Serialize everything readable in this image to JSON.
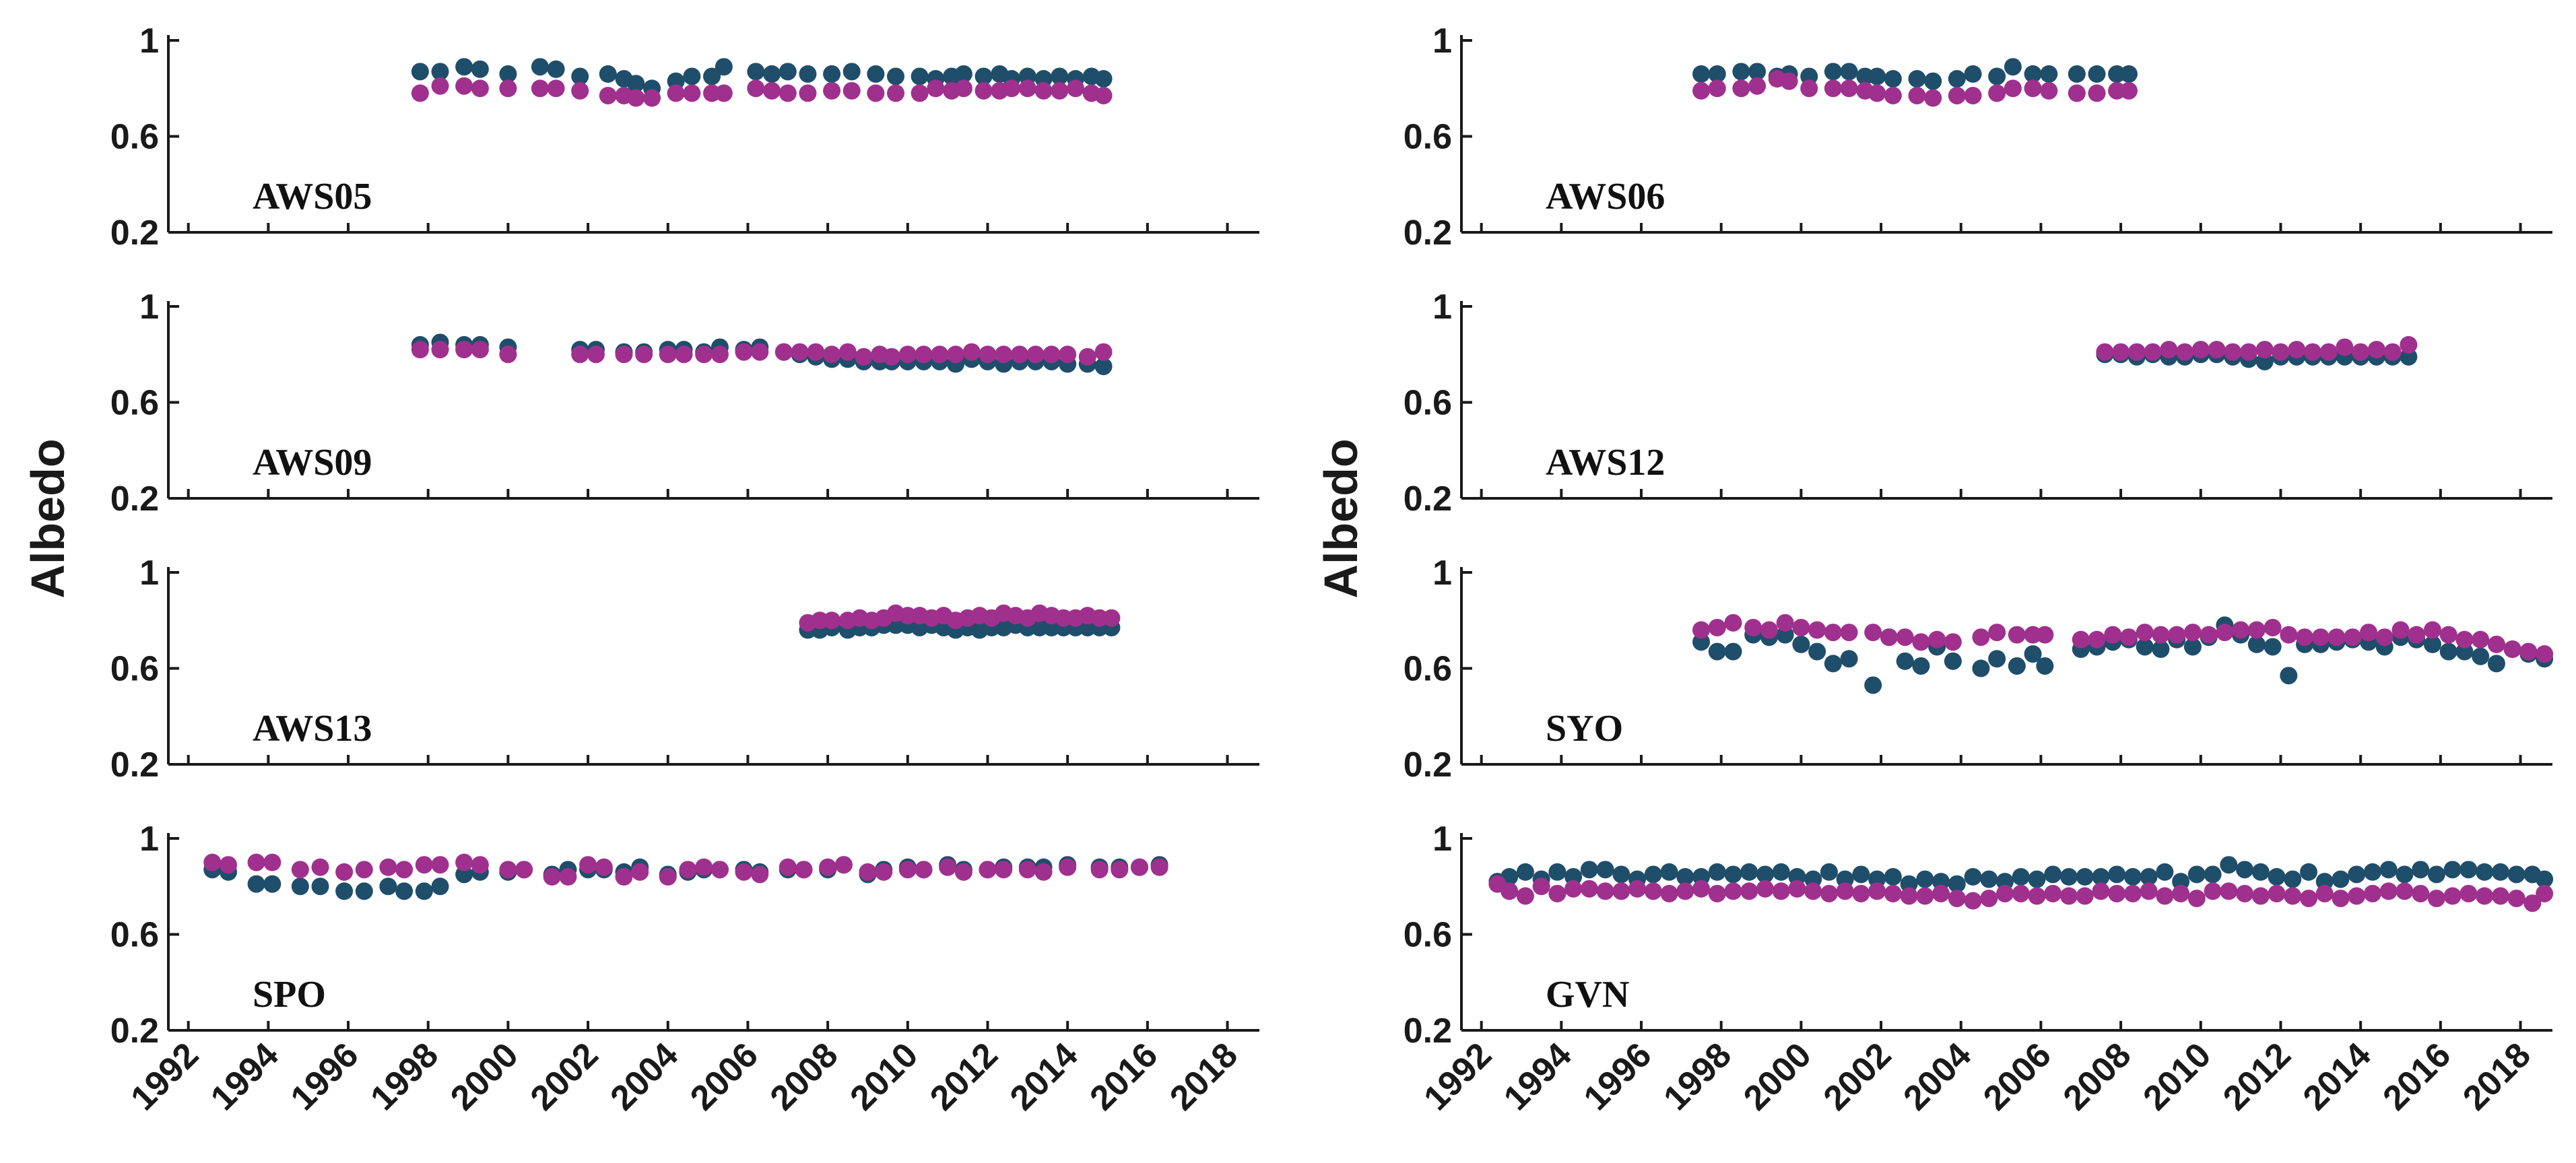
{
  "colors": {
    "series_a": "#1f4e6b",
    "series_b": "#a0308e",
    "axis": "#1a1a1a"
  },
  "chart_data": {
    "type": "scatter",
    "ylabel": "Albedo",
    "xlim": [
      1991.5,
      2018.8
    ],
    "ylim": [
      0.2,
      1.0
    ],
    "x_ticks": [
      "1992",
      "1994",
      "1996",
      "1998",
      "2000",
      "2002",
      "2004",
      "2006",
      "2008",
      "2010",
      "2012",
      "2014",
      "2016",
      "2018"
    ],
    "y_ticks": [
      "1",
      "0.6",
      "0.2"
    ],
    "series_names": [
      "dark-teal",
      "magenta"
    ],
    "panels": [
      {
        "station": "AWS05",
        "column": "left",
        "row": 0,
        "x": [
          1997.8,
          1998.3,
          1998.9,
          1999.3,
          2000.0,
          2000.8,
          2001.2,
          2001.8,
          2002.5,
          2002.9,
          2003.2,
          2003.6,
          2004.2,
          2004.6,
          2005.1,
          2005.4,
          2006.2,
          2006.6,
          2007.0,
          2007.5,
          2008.1,
          2008.6,
          2009.2,
          2009.7,
          2010.3,
          2010.7,
          2011.1,
          2011.4,
          2011.9,
          2012.3,
          2012.6,
          2013.0,
          2013.4,
          2013.8,
          2014.2,
          2014.6,
          2014.9
        ],
        "a": [
          0.87,
          0.87,
          0.89,
          0.88,
          0.86,
          0.89,
          0.88,
          0.85,
          0.86,
          0.84,
          0.82,
          0.8,
          0.83,
          0.85,
          0.85,
          0.89,
          0.87,
          0.86,
          0.87,
          0.86,
          0.86,
          0.87,
          0.86,
          0.85,
          0.85,
          0.84,
          0.85,
          0.86,
          0.85,
          0.86,
          0.84,
          0.85,
          0.84,
          0.85,
          0.84,
          0.85,
          0.84
        ],
        "b": [
          0.78,
          0.81,
          0.81,
          0.8,
          0.8,
          0.8,
          0.8,
          0.79,
          0.77,
          0.77,
          0.76,
          0.76,
          0.78,
          0.78,
          0.78,
          0.78,
          0.8,
          0.79,
          0.78,
          0.78,
          0.79,
          0.79,
          0.78,
          0.78,
          0.78,
          0.8,
          0.79,
          0.8,
          0.79,
          0.79,
          0.8,
          0.8,
          0.79,
          0.79,
          0.8,
          0.78,
          0.77
        ]
      },
      {
        "station": "AWS09",
        "column": "left",
        "row": 1,
        "x": [
          1997.8,
          1998.3,
          1998.9,
          1999.3,
          2000.0,
          2001.8,
          2002.2,
          2002.9,
          2003.4,
          2004.0,
          2004.4,
          2004.9,
          2005.3,
          2005.9,
          2006.3,
          2006.9,
          2007.3,
          2007.7,
          2008.1,
          2008.5,
          2008.9,
          2009.3,
          2009.6,
          2010.0,
          2010.4,
          2010.8,
          2011.2,
          2011.6,
          2012.0,
          2012.4,
          2012.8,
          2013.2,
          2013.6,
          2014.0,
          2014.5,
          2014.9
        ],
        "a": [
          0.84,
          0.85,
          0.84,
          0.84,
          0.83,
          0.82,
          0.82,
          0.81,
          0.81,
          0.82,
          0.82,
          0.81,
          0.83,
          0.82,
          0.83,
          0.81,
          0.8,
          0.79,
          0.78,
          0.78,
          0.77,
          0.77,
          0.77,
          0.77,
          0.77,
          0.77,
          0.76,
          0.78,
          0.77,
          0.76,
          0.77,
          0.77,
          0.77,
          0.76,
          0.76,
          0.75
        ],
        "b": [
          0.82,
          0.82,
          0.82,
          0.82,
          0.8,
          0.8,
          0.8,
          0.8,
          0.8,
          0.8,
          0.8,
          0.8,
          0.8,
          0.81,
          0.81,
          0.81,
          0.81,
          0.81,
          0.8,
          0.81,
          0.79,
          0.8,
          0.79,
          0.8,
          0.8,
          0.8,
          0.8,
          0.81,
          0.8,
          0.8,
          0.8,
          0.8,
          0.8,
          0.8,
          0.79,
          0.81
        ]
      },
      {
        "station": "AWS13",
        "column": "left",
        "row": 2,
        "x": [
          2007.5,
          2007.8,
          2008.1,
          2008.5,
          2008.8,
          2009.1,
          2009.4,
          2009.7,
          2010.0,
          2010.3,
          2010.6,
          2010.9,
          2011.2,
          2011.5,
          2011.8,
          2012.1,
          2012.4,
          2012.7,
          2013.0,
          2013.3,
          2013.6,
          2013.9,
          2014.2,
          2014.5,
          2014.8,
          2015.1
        ],
        "a": [
          0.76,
          0.76,
          0.77,
          0.76,
          0.77,
          0.77,
          0.78,
          0.78,
          0.78,
          0.77,
          0.78,
          0.77,
          0.76,
          0.77,
          0.76,
          0.77,
          0.77,
          0.78,
          0.77,
          0.77,
          0.77,
          0.77,
          0.77,
          0.77,
          0.77,
          0.77
        ],
        "b": [
          0.79,
          0.8,
          0.8,
          0.8,
          0.81,
          0.8,
          0.81,
          0.83,
          0.82,
          0.82,
          0.81,
          0.82,
          0.8,
          0.81,
          0.82,
          0.81,
          0.83,
          0.82,
          0.81,
          0.83,
          0.82,
          0.81,
          0.81,
          0.82,
          0.81,
          0.81
        ]
      },
      {
        "station": "SPO",
        "column": "left",
        "row": 3,
        "x": [
          1992.6,
          1993.0,
          1993.7,
          1994.1,
          1994.8,
          1995.3,
          1995.9,
          1996.4,
          1997.0,
          1997.4,
          1997.9,
          1998.3,
          1998.9,
          1999.3,
          2000.0,
          2000.4,
          2001.1,
          2001.5,
          2002.0,
          2002.4,
          2002.9,
          2003.3,
          2004.0,
          2004.5,
          2004.9,
          2005.3,
          2005.9,
          2006.3,
          2007.0,
          2007.4,
          2008.0,
          2008.4,
          2009.0,
          2009.4,
          2010.0,
          2010.4,
          2011.0,
          2011.4,
          2012.0,
          2012.4,
          2013.0,
          2013.4,
          2014.0,
          2014.8,
          2015.3,
          2015.8,
          2016.3
        ],
        "a": [
          0.87,
          0.86,
          0.81,
          0.81,
          0.8,
          0.8,
          0.78,
          0.78,
          0.8,
          0.78,
          0.78,
          0.8,
          0.85,
          0.86,
          0.86,
          0.87,
          0.85,
          0.87,
          0.87,
          0.87,
          0.86,
          0.88,
          0.85,
          0.86,
          0.87,
          0.87,
          0.87,
          0.86,
          0.87,
          0.87,
          0.87,
          0.89,
          0.85,
          0.87,
          0.88,
          0.87,
          0.89,
          0.87,
          0.87,
          0.88,
          0.88,
          0.88,
          0.89,
          0.88,
          0.88,
          0.88,
          0.89
        ],
        "b": [
          0.9,
          0.89,
          0.9,
          0.9,
          0.87,
          0.88,
          0.86,
          0.87,
          0.88,
          0.87,
          0.89,
          0.89,
          0.9,
          0.89,
          0.87,
          0.87,
          0.84,
          0.84,
          0.89,
          0.88,
          0.84,
          0.86,
          0.84,
          0.87,
          0.88,
          0.87,
          0.86,
          0.85,
          0.88,
          0.87,
          0.88,
          0.89,
          0.86,
          0.86,
          0.87,
          0.87,
          0.88,
          0.86,
          0.87,
          0.87,
          0.87,
          0.86,
          0.88,
          0.87,
          0.87,
          0.88,
          0.88
        ]
      },
      {
        "station": "AWS06",
        "column": "right",
        "row": 0,
        "x": [
          1997.5,
          1997.9,
          1998.5,
          1998.9,
          1999.4,
          1999.7,
          2000.2,
          2000.8,
          2001.2,
          2001.6,
          2001.9,
          2002.3,
          2002.9,
          2003.3,
          2003.9,
          2004.3,
          2004.9,
          2005.3,
          2005.8,
          2006.2,
          2006.9,
          2007.4,
          2007.9,
          2008.2
        ],
        "a": [
          0.86,
          0.86,
          0.87,
          0.87,
          0.85,
          0.86,
          0.85,
          0.87,
          0.87,
          0.85,
          0.85,
          0.84,
          0.84,
          0.83,
          0.84,
          0.86,
          0.85,
          0.89,
          0.86,
          0.86,
          0.86,
          0.86,
          0.86,
          0.86
        ],
        "b": [
          0.79,
          0.8,
          0.8,
          0.81,
          0.84,
          0.83,
          0.8,
          0.8,
          0.8,
          0.79,
          0.78,
          0.77,
          0.77,
          0.76,
          0.77,
          0.77,
          0.78,
          0.8,
          0.8,
          0.79,
          0.78,
          0.78,
          0.79,
          0.79
        ]
      },
      {
        "station": "AWS12",
        "column": "right",
        "row": 1,
        "x": [
          2007.6,
          2008.0,
          2008.4,
          2008.8,
          2009.2,
          2009.6,
          2010.0,
          2010.4,
          2010.8,
          2011.2,
          2011.6,
          2012.0,
          2012.4,
          2012.8,
          2013.2,
          2013.6,
          2014.0,
          2014.4,
          2014.8,
          2015.2
        ],
        "a": [
          0.8,
          0.8,
          0.79,
          0.8,
          0.79,
          0.79,
          0.8,
          0.8,
          0.79,
          0.78,
          0.77,
          0.79,
          0.79,
          0.79,
          0.79,
          0.79,
          0.79,
          0.79,
          0.79,
          0.79
        ],
        "b": [
          0.81,
          0.81,
          0.81,
          0.81,
          0.82,
          0.81,
          0.82,
          0.82,
          0.81,
          0.81,
          0.82,
          0.81,
          0.82,
          0.81,
          0.81,
          0.83,
          0.81,
          0.82,
          0.81,
          0.84
        ]
      },
      {
        "station": "SYO",
        "column": "right",
        "row": 2,
        "x": [
          1997.5,
          1997.9,
          1998.3,
          1998.8,
          1999.2,
          1999.6,
          2000.0,
          2000.4,
          2000.8,
          2001.2,
          2001.8,
          2002.2,
          2002.6,
          2003.0,
          2003.4,
          2003.8,
          2004.5,
          2004.9,
          2005.4,
          2005.8,
          2006.1,
          2007.0,
          2007.4,
          2007.8,
          2008.2,
          2008.6,
          2009.0,
          2009.4,
          2009.8,
          2010.2,
          2010.6,
          2011.0,
          2011.4,
          2011.8,
          2012.2,
          2012.6,
          2013.0,
          2013.4,
          2013.8,
          2014.2,
          2014.6,
          2015.0,
          2015.4,
          2015.8,
          2016.2,
          2016.6,
          2017.0,
          2017.4,
          2017.8,
          2018.2,
          2018.6
        ],
        "a": [
          0.71,
          0.67,
          0.67,
          0.74,
          0.73,
          0.74,
          0.7,
          0.67,
          0.62,
          0.64,
          0.53,
          0.73,
          0.63,
          0.61,
          0.69,
          0.63,
          0.6,
          0.64,
          0.61,
          0.66,
          0.61,
          0.68,
          0.69,
          0.71,
          0.72,
          0.69,
          0.68,
          0.72,
          0.69,
          0.73,
          0.78,
          0.74,
          0.7,
          0.69,
          0.57,
          0.7,
          0.7,
          0.71,
          0.72,
          0.71,
          0.69,
          0.73,
          0.72,
          0.7,
          0.67,
          0.67,
          0.65,
          0.62,
          0.68,
          0.66,
          0.64
        ],
        "b": [
          0.76,
          0.77,
          0.79,
          0.77,
          0.76,
          0.79,
          0.77,
          0.76,
          0.75,
          0.75,
          0.75,
          0.73,
          0.73,
          0.71,
          0.72,
          0.71,
          0.73,
          0.75,
          0.74,
          0.74,
          0.74,
          0.72,
          0.72,
          0.74,
          0.73,
          0.75,
          0.74,
          0.74,
          0.75,
          0.74,
          0.75,
          0.76,
          0.76,
          0.77,
          0.74,
          0.73,
          0.73,
          0.73,
          0.73,
          0.75,
          0.73,
          0.76,
          0.74,
          0.76,
          0.74,
          0.72,
          0.72,
          0.7,
          0.68,
          0.67,
          0.66
        ]
      },
      {
        "station": "GVN",
        "column": "right",
        "row": 3,
        "x": [
          1992.4,
          1992.7,
          1993.1,
          1993.5,
          1993.9,
          1994.3,
          1994.7,
          1995.1,
          1995.5,
          1995.9,
          1996.3,
          1996.7,
          1997.1,
          1997.5,
          1997.9,
          1998.3,
          1998.7,
          1999.1,
          1999.5,
          1999.9,
          2000.3,
          2000.7,
          2001.1,
          2001.5,
          2001.9,
          2002.3,
          2002.7,
          2003.1,
          2003.5,
          2003.9,
          2004.3,
          2004.7,
          2005.1,
          2005.5,
          2005.9,
          2006.3,
          2006.7,
          2007.1,
          2007.5,
          2007.9,
          2008.3,
          2008.7,
          2009.1,
          2009.5,
          2009.9,
          2010.3,
          2010.7,
          2011.1,
          2011.5,
          2011.9,
          2012.3,
          2012.7,
          2013.1,
          2013.5,
          2013.9,
          2014.3,
          2014.7,
          2015.1,
          2015.5,
          2015.9,
          2016.3,
          2016.7,
          2017.1,
          2017.5,
          2017.9,
          2018.3,
          2018.6
        ],
        "a": [
          0.82,
          0.84,
          0.86,
          0.83,
          0.86,
          0.84,
          0.87,
          0.87,
          0.85,
          0.83,
          0.85,
          0.86,
          0.84,
          0.84,
          0.86,
          0.85,
          0.86,
          0.85,
          0.86,
          0.84,
          0.83,
          0.86,
          0.83,
          0.85,
          0.83,
          0.84,
          0.81,
          0.83,
          0.82,
          0.81,
          0.84,
          0.83,
          0.82,
          0.84,
          0.83,
          0.85,
          0.84,
          0.84,
          0.84,
          0.85,
          0.84,
          0.84,
          0.86,
          0.82,
          0.85,
          0.85,
          0.89,
          0.87,
          0.86,
          0.84,
          0.83,
          0.86,
          0.82,
          0.83,
          0.85,
          0.86,
          0.87,
          0.85,
          0.87,
          0.85,
          0.87,
          0.87,
          0.86,
          0.86,
          0.85,
          0.85,
          0.83
        ],
        "b": [
          0.81,
          0.78,
          0.76,
          0.8,
          0.77,
          0.79,
          0.79,
          0.78,
          0.78,
          0.79,
          0.78,
          0.77,
          0.78,
          0.79,
          0.77,
          0.78,
          0.78,
          0.79,
          0.78,
          0.79,
          0.78,
          0.77,
          0.78,
          0.77,
          0.78,
          0.77,
          0.76,
          0.76,
          0.77,
          0.75,
          0.74,
          0.75,
          0.77,
          0.77,
          0.76,
          0.77,
          0.76,
          0.76,
          0.78,
          0.77,
          0.77,
          0.78,
          0.76,
          0.77,
          0.75,
          0.78,
          0.78,
          0.77,
          0.76,
          0.77,
          0.76,
          0.75,
          0.77,
          0.75,
          0.76,
          0.77,
          0.78,
          0.78,
          0.77,
          0.75,
          0.76,
          0.77,
          0.76,
          0.76,
          0.75,
          0.73,
          0.77
        ]
      }
    ]
  }
}
